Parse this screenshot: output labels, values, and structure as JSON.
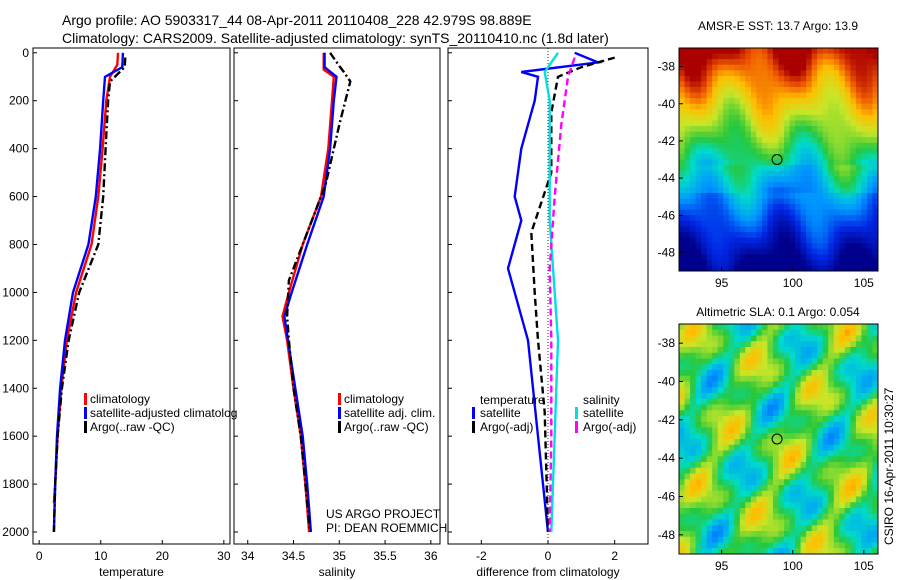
{
  "header": {
    "line1": "Argo profile: AO 5903317_44 08-Apr-2011 20110408_228 42.979S 98.889E",
    "line2": "Climatology: CARS2009. Satellite-adjusted climatology: synTS_20110410.nc (1.8d later)"
  },
  "colors": {
    "climatology": "#ff0000",
    "satellite": "#0000ff",
    "argo": "#000000",
    "sal_satellite": "#00e0e0",
    "sal_argo": "#ff00ff"
  },
  "chart_data": [
    {
      "type": "line",
      "name": "temperature-panel",
      "xlabel": "temperature",
      "ylabel": "",
      "xlim": [
        -1,
        31
      ],
      "ylim": [
        2050,
        -20
      ],
      "xticks": [
        0,
        10,
        20,
        30
      ],
      "yticks": [
        0,
        200,
        400,
        600,
        800,
        1000,
        1200,
        1400,
        1600,
        1800,
        2000
      ],
      "series": [
        {
          "name": "climatology",
          "color": "#ff0000",
          "dash": "solid",
          "points": [
            [
              12.8,
              0
            ],
            [
              12.7,
              50
            ],
            [
              11.5,
              100
            ],
            [
              10.9,
              200
            ],
            [
              10.3,
              400
            ],
            [
              9.6,
              600
            ],
            [
              8.5,
              800
            ],
            [
              6.0,
              1000
            ],
            [
              4.5,
              1200
            ],
            [
              3.6,
              1400
            ],
            [
              3.0,
              1600
            ],
            [
              2.6,
              1800
            ],
            [
              2.4,
              1880
            ]
          ]
        },
        {
          "name": "satellite-adjusted climatology",
          "color": "#0000ff",
          "dash": "solid",
          "points": [
            [
              13.6,
              0
            ],
            [
              13.5,
              60
            ],
            [
              10.7,
              100
            ],
            [
              10.4,
              200
            ],
            [
              9.9,
              400
            ],
            [
              9.2,
              600
            ],
            [
              8.0,
              800
            ],
            [
              5.5,
              1000
            ],
            [
              4.2,
              1200
            ],
            [
              3.4,
              1400
            ],
            [
              2.9,
              1600
            ],
            [
              2.6,
              1800
            ],
            [
              2.4,
              2000
            ]
          ]
        },
        {
          "name": "Argo(..raw -QC)",
          "color": "#000000",
          "dash": "dashdot",
          "points": [
            [
              14.0,
              20
            ],
            [
              13.9,
              60
            ],
            [
              11.5,
              120
            ],
            [
              11.2,
              200
            ],
            [
              10.8,
              400
            ],
            [
              10.4,
              600
            ],
            [
              9.6,
              800
            ],
            [
              6.5,
              1000
            ],
            [
              4.8,
              1200
            ],
            [
              3.7,
              1400
            ],
            [
              3.0,
              1600
            ],
            [
              2.6,
              1800
            ],
            [
              2.4,
              2000
            ]
          ]
        }
      ],
      "legend": {
        "placement": "bottom-right",
        "entries": [
          "climatology",
          "satellite-adjusted climatolog",
          "Argo(..raw -QC)"
        ]
      }
    },
    {
      "type": "line",
      "name": "salinity-panel",
      "xlabel": "salinity",
      "xlim": [
        33.85,
        36.1
      ],
      "ylim": [
        2050,
        -20
      ],
      "xticks": [
        34,
        34.5,
        35,
        35.5,
        36
      ],
      "xticklabels": [
        "34",
        "34.5",
        "35",
        "35.5",
        "36"
      ],
      "series": [
        {
          "name": "climatology",
          "color": "#ff0000",
          "dash": "solid",
          "points": [
            [
              34.83,
              0
            ],
            [
              34.83,
              70
            ],
            [
              34.94,
              100
            ],
            [
              34.92,
              200
            ],
            [
              34.88,
              400
            ],
            [
              34.8,
              600
            ],
            [
              34.6,
              800
            ],
            [
              34.45,
              1000
            ],
            [
              34.38,
              1100
            ],
            [
              34.43,
              1200
            ],
            [
              34.5,
              1400
            ],
            [
              34.58,
              1600
            ],
            [
              34.63,
              1800
            ],
            [
              34.67,
              2000
            ]
          ]
        },
        {
          "name": "satellite adj. clim.",
          "color": "#0000ff",
          "dash": "solid",
          "points": [
            [
              34.84,
              0
            ],
            [
              34.84,
              60
            ],
            [
              34.97,
              100
            ],
            [
              34.94,
              200
            ],
            [
              34.9,
              400
            ],
            [
              34.83,
              600
            ],
            [
              34.65,
              800
            ],
            [
              34.48,
              1000
            ],
            [
              34.4,
              1100
            ],
            [
              34.44,
              1200
            ],
            [
              34.52,
              1400
            ],
            [
              34.6,
              1600
            ],
            [
              34.65,
              1800
            ],
            [
              34.69,
              2000
            ]
          ]
        },
        {
          "name": "Argo(..raw -QC)",
          "color": "#000000",
          "dash": "dashdot",
          "points": [
            [
              34.9,
              0
            ],
            [
              34.99,
              50
            ],
            [
              35.05,
              80
            ],
            [
              35.12,
              120
            ],
            [
              35.0,
              300
            ],
            [
              34.85,
              550
            ],
            [
              34.6,
              800
            ],
            [
              34.45,
              950
            ],
            [
              34.43,
              1100
            ],
            [
              34.45,
              1200
            ],
            [
              34.5,
              1400
            ],
            [
              34.58,
              1600
            ],
            [
              34.63,
              1800
            ],
            [
              34.68,
              2000
            ]
          ]
        }
      ],
      "legend": {
        "placement": "bottom-right",
        "entries": [
          "climatology",
          "satellite adj. clim.",
          "Argo(..raw -QC)"
        ]
      },
      "annotation": [
        "US ARGO PROJECT",
        "PI: DEAN ROEMMICH"
      ]
    },
    {
      "type": "line",
      "name": "difference-panel",
      "xlabel": "difference from climatology",
      "xlim": [
        -3,
        3
      ],
      "ylim": [
        2050,
        -20
      ],
      "xticks": [
        -2,
        0,
        2
      ],
      "zero_line": true,
      "series": [
        {
          "name": "temperature satellite",
          "color": "#0000ff",
          "dash": "solid",
          "points": [
            [
              0.8,
              0
            ],
            [
              1.5,
              40
            ],
            [
              -0.8,
              80
            ],
            [
              -0.3,
              100
            ],
            [
              -0.4,
              200
            ],
            [
              -0.8,
              400
            ],
            [
              -1.0,
              600
            ],
            [
              -0.8,
              700
            ],
            [
              -1.2,
              900
            ],
            [
              -0.6,
              1200
            ],
            [
              -0.3,
              1600
            ],
            [
              0.0,
              2000
            ]
          ]
        },
        {
          "name": "temperature Argo(-adj)",
          "color": "#000000",
          "dash": "dashed",
          "points": [
            [
              2.0,
              20
            ],
            [
              1.0,
              60
            ],
            [
              0.3,
              100
            ],
            [
              0.1,
              250
            ],
            [
              0.1,
              500
            ],
            [
              -0.5,
              750
            ],
            [
              -0.4,
              1000
            ],
            [
              -0.3,
              1200
            ],
            [
              -0.1,
              1500
            ],
            [
              0.0,
              2000
            ]
          ]
        },
        {
          "name": "salinity satellite",
          "color": "#00e0e0",
          "dash": "solid",
          "points": [
            [
              0.3,
              0
            ],
            [
              -0.1,
              80
            ],
            [
              0.05,
              200
            ],
            [
              0.05,
              400
            ],
            [
              0.05,
              700
            ],
            [
              0.2,
              1000
            ],
            [
              0.3,
              1200
            ],
            [
              0.25,
              1400
            ],
            [
              0.15,
              1800
            ],
            [
              0.1,
              2000
            ]
          ]
        },
        {
          "name": "salinity Argo(-adj)",
          "color": "#ff00ff",
          "dash": "dashed",
          "points": [
            [
              0.8,
              20
            ],
            [
              0.6,
              100
            ],
            [
              0.4,
              300
            ],
            [
              0.2,
              600
            ],
            [
              0.05,
              900
            ],
            [
              0.1,
              1200
            ],
            [
              0.1,
              1600
            ],
            [
              0.05,
              2000
            ]
          ]
        }
      ],
      "legend": {
        "placement": "bottom",
        "temp_heading": "temperature",
        "sal_heading": "salinity",
        "temp_entries": [
          "satellite",
          "Argo(-adj)"
        ],
        "sal_entries": [
          "satellite",
          "Argo(-adj)"
        ]
      }
    },
    {
      "type": "heatmap",
      "name": "sst-map",
      "title": "AMSR-E SST: 13.7 Argo: 13.9",
      "xlim": [
        92,
        106
      ],
      "ylim": [
        -49,
        -37
      ],
      "xticks": [
        95,
        100,
        105
      ],
      "yticks": [
        -38,
        -40,
        -42,
        -44,
        -46,
        -48
      ],
      "marker": [
        98.9,
        -43.0
      ]
    },
    {
      "type": "heatmap",
      "name": "sla-map",
      "title": "Altimetric SLA: 0.1 Argo: 0.054",
      "xlim": [
        92,
        106
      ],
      "ylim": [
        -49,
        -37
      ],
      "xticks": [
        95,
        100,
        105
      ],
      "yticks": [
        -38,
        -40,
        -42,
        -44,
        -46,
        -48
      ],
      "marker": [
        98.9,
        -43.0
      ]
    }
  ],
  "side_text": "CSIRO 16-Apr-2011 10:30:27"
}
